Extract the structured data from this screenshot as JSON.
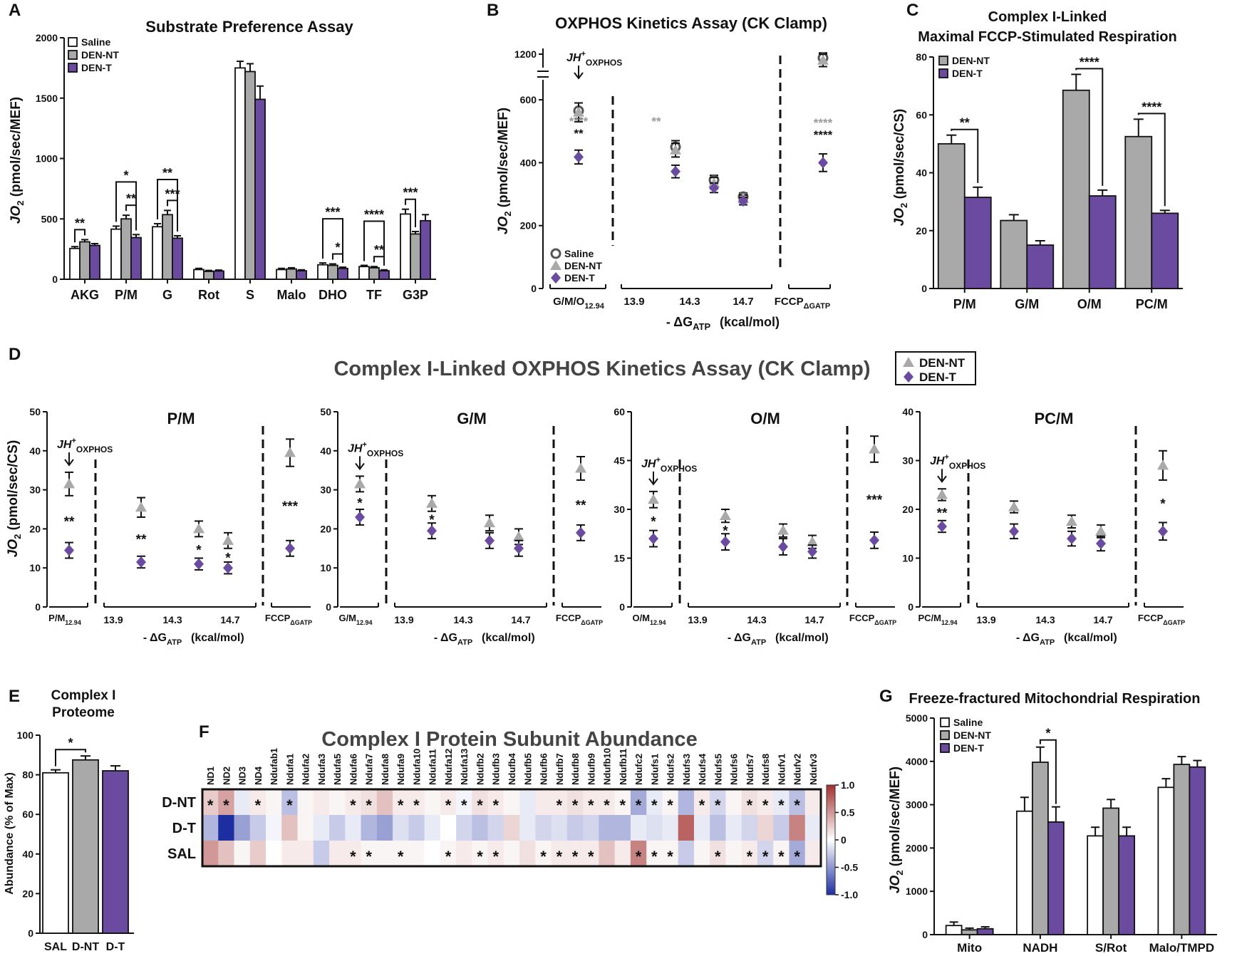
{
  "colors": {
    "saline": "#ffffff",
    "den_nt": "#a9a9a9",
    "den_t": "#6a4ba0",
    "marker_saline": "#555555",
    "stroke": "#111111",
    "sig_black": "#111111",
    "sig_grey": "#9a9a9a",
    "heat_pos": "#a2302f",
    "heat_neg": "#1d2ea0"
  },
  "chart_data": [
    {
      "panel": "A",
      "type": "bar",
      "title": "Substrate Preference Assay",
      "ylabel": "JO2 (pmol/sec/MEF)",
      "ylim": [
        0,
        2000
      ],
      "yticks": [
        0,
        500,
        1000,
        1500,
        2000
      ],
      "categories": [
        "AKG",
        "P/M",
        "G",
        "Rot",
        "S",
        "Malo",
        "DHO",
        "TF",
        "G3P"
      ],
      "series": [
        {
          "name": "Saline",
          "values": [
            255,
            415,
            435,
            80,
            1750,
            80,
            120,
            105,
            540
          ],
          "errors": [
            15,
            25,
            25,
            10,
            55,
            10,
            15,
            10,
            40
          ]
        },
        {
          "name": "DEN-NT",
          "values": [
            310,
            500,
            535,
            65,
            1720,
            85,
            115,
            95,
            375
          ],
          "errors": [
            18,
            30,
            35,
            8,
            65,
            10,
            12,
            10,
            20
          ]
        },
        {
          "name": "DEN-T",
          "values": [
            280,
            345,
            340,
            68,
            1490,
            70,
            90,
            70,
            485
          ],
          "errors": [
            15,
            25,
            20,
            8,
            110,
            8,
            10,
            8,
            50
          ]
        }
      ],
      "significance": [
        {
          "from": [
            0,
            0
          ],
          "to": [
            0,
            1
          ],
          "label": "**"
        },
        {
          "from": [
            1,
            0
          ],
          "to": [
            1,
            2
          ],
          "label": "*"
        },
        {
          "from": [
            1,
            1
          ],
          "to": [
            1,
            2
          ],
          "label": "**"
        },
        {
          "from": [
            2,
            0
          ],
          "to": [
            2,
            2
          ],
          "label": "**"
        },
        {
          "from": [
            2,
            1
          ],
          "to": [
            2,
            2
          ],
          "label": "***"
        },
        {
          "from": [
            6,
            0
          ],
          "to": [
            6,
            2
          ],
          "label": "***"
        },
        {
          "from": [
            6,
            1
          ],
          "to": [
            6,
            2
          ],
          "label": "*"
        },
        {
          "from": [
            7,
            0
          ],
          "to": [
            7,
            2
          ],
          "label": "****"
        },
        {
          "from": [
            7,
            1
          ],
          "to": [
            7,
            2
          ],
          "label": "**"
        },
        {
          "from": [
            8,
            0
          ],
          "to": [
            8,
            1
          ],
          "label": "***"
        }
      ]
    },
    {
      "panel": "B",
      "type": "scatter",
      "title": "OXPHOS Kinetics Assay (CK Clamp)",
      "ylabel": "JO2 (pmol/sec/MEF)",
      "xlabel": "- ΔGATP (kcal/mol)",
      "yticks": [
        0,
        200,
        400,
        600,
        1200
      ],
      "ylim": [
        0,
        650
      ],
      "y_break": "650-1150",
      "groups": [
        "G/M/O12.94",
        "13.9",
        "14.3",
        "14.7",
        "FCCPΔGATP"
      ],
      "xtick_labels": [
        "G/M/O",
        "13.9",
        "14.3",
        "14.7",
        "FCCP"
      ],
      "xtick_subs": [
        "12.94",
        "",
        "",
        "",
        "ΔGATP"
      ],
      "series": [
        {
          "name": "Saline",
          "marker": "circle",
          "points": [
            [
              0.0,
              565,
              25
            ],
            [
              1.45,
              450,
              20
            ],
            [
              2.55,
              345,
              15
            ],
            [
              3.3,
              292,
              12
            ],
            [
              4.6,
              1185,
              20
            ]
          ]
        },
        {
          "name": "DEN-NT",
          "marker": "triangle",
          "points": [
            [
              0.0,
              560,
              30
            ],
            [
              1.45,
              440,
              22
            ],
            [
              2.55,
              335,
              18
            ],
            [
              3.3,
              285,
              12
            ],
            [
              4.6,
              1175,
              25
            ]
          ]
        },
        {
          "name": "DEN-T",
          "marker": "diamond",
          "points": [
            [
              0.0,
              418,
              22
            ],
            [
              1.45,
              372,
              20
            ],
            [
              2.55,
              320,
              15
            ],
            [
              3.3,
              278,
              12
            ],
            [
              4.6,
              400,
              28
            ]
          ]
        }
      ],
      "annotation": {
        "text": "JH",
        "sup": "+",
        "sub": "OXPHOS"
      },
      "sig": [
        {
          "x": 0.0,
          "lines": [
            {
              "t": "****",
              "c": "grey"
            },
            {
              "t": "**",
              "c": "black"
            }
          ]
        },
        {
          "x": 1.45,
          "lines": [
            {
              "t": "**",
              "c": "grey"
            }
          ]
        },
        {
          "x": 4.6,
          "lines": [
            {
              "t": "****",
              "c": "grey"
            },
            {
              "t": "****",
              "c": "black"
            }
          ]
        }
      ],
      "legend": [
        "Saline",
        "DEN-NT",
        "DEN-T"
      ]
    },
    {
      "panel": "C",
      "type": "bar",
      "title": "Complex I-Linked",
      "title2": "Maximal FCCP-Stimulated Respiration",
      "ylabel": "JO2 (pmol/sec/CS)",
      "ylim": [
        0,
        80
      ],
      "yticks": [
        0,
        20,
        40,
        60,
        80
      ],
      "categories": [
        "P/M",
        "G/M",
        "O/M",
        "PC/M"
      ],
      "series": [
        {
          "name": "DEN-NT",
          "values": [
            50,
            23.5,
            68.5,
            52.5
          ],
          "errors": [
            3,
            2,
            5.5,
            6
          ]
        },
        {
          "name": "DEN-T",
          "values": [
            31.5,
            15,
            32,
            26
          ],
          "errors": [
            3.5,
            1.5,
            2,
            1
          ]
        }
      ],
      "significance": [
        {
          "cat": 0,
          "label": "**"
        },
        {
          "cat": 2,
          "label": "****"
        },
        {
          "cat": 3,
          "label": "****"
        }
      ]
    },
    {
      "panel": "D",
      "type": "scatter",
      "title": "Complex I-Linked OXPHOS Kinetics Assay (CK Clamp)",
      "ylabel": "JO2 (pmol/sec/CS)",
      "xlabel": "- ΔGATP (kcal/mol)",
      "legend": [
        "DEN-NT",
        "DEN-T"
      ],
      "xtick_labels": [
        "13.9",
        "14.3",
        "14.7"
      ],
      "subplots": [
        {
          "title": "P/M",
          "first_label": "P/M",
          "first_sub": "12.94",
          "ymax": 50,
          "yticks": [
            0,
            10,
            20,
            30,
            40,
            50
          ],
          "nt": [
            [
              31.5,
              3
            ],
            [
              25.5,
              2.5
            ],
            [
              20,
              2
            ],
            [
              17,
              2
            ],
            [
              39.5,
              3.5
            ]
          ],
          "t": [
            [
              14.5,
              2
            ],
            [
              11.5,
              1.5
            ],
            [
              11,
              1.5
            ],
            [
              10,
              1.5
            ],
            [
              15,
              2
            ]
          ],
          "sig": [
            "**",
            "**",
            "*",
            "*",
            "***"
          ]
        },
        {
          "title": "G/M",
          "first_label": "G/M",
          "first_sub": "12.94",
          "ymax": 50,
          "yticks": [
            0,
            10,
            20,
            30,
            40,
            50
          ],
          "nt": [
            [
              31.5,
              2
            ],
            [
              26.5,
              2
            ],
            [
              21.5,
              2
            ],
            [
              18,
              2
            ],
            [
              35.5,
              3
            ]
          ],
          "t": [
            [
              23,
              2
            ],
            [
              19.5,
              2
            ],
            [
              17,
              2
            ],
            [
              15,
              2
            ],
            [
              19,
              2
            ]
          ],
          "sig": [
            "*",
            "*",
            "",
            "",
            "**"
          ]
        },
        {
          "title": "O/M",
          "first_label": "O/M",
          "first_sub": "12.94",
          "ymax": 60,
          "yticks": [
            0,
            15,
            30,
            45,
            60
          ],
          "nt": [
            [
              33,
              2.5
            ],
            [
              28,
              2
            ],
            [
              23.5,
              2
            ],
            [
              20,
              2
            ],
            [
              48.5,
              4
            ]
          ],
          "t": [
            [
              21,
              2.5
            ],
            [
              20,
              2.5
            ],
            [
              18.5,
              2.5
            ],
            [
              17,
              2
            ],
            [
              20.5,
              2.5
            ]
          ],
          "sig": [
            "*",
            "*",
            "",
            "",
            "***"
          ]
        },
        {
          "title": "PC/M",
          "first_label": "PC/M",
          "first_sub": "12.94",
          "ymax": 40,
          "yticks": [
            0,
            10,
            20,
            30,
            40
          ],
          "nt": [
            [
              23,
              1.2
            ],
            [
              20.5,
              1.2
            ],
            [
              17.5,
              1.3
            ],
            [
              15.5,
              1.3
            ],
            [
              29,
              3
            ]
          ],
          "t": [
            [
              16.5,
              1.2
            ],
            [
              15.5,
              1.5
            ],
            [
              14,
              1.5
            ],
            [
              13,
              1.5
            ],
            [
              15.5,
              1.8
            ]
          ],
          "sig": [
            "**",
            "",
            "",
            "",
            "*"
          ]
        }
      ],
      "annotation": {
        "text": "JH",
        "sup": "+",
        "sub": "OXPHOS"
      }
    },
    {
      "panel": "E",
      "type": "bar",
      "title": "Complex I",
      "title2": "Proteome",
      "ylabel": "Abundance (% of Max)",
      "ylim": [
        0,
        100
      ],
      "yticks": [
        0,
        20,
        40,
        60,
        80,
        100
      ],
      "categories": [
        "SAL",
        "D-NT",
        "D-T"
      ],
      "values": [
        81,
        87.5,
        82
      ],
      "errors": [
        1.5,
        2,
        2.5
      ],
      "significance": [
        {
          "from": 0,
          "to": 1,
          "label": "*"
        }
      ]
    },
    {
      "panel": "F",
      "type": "heatmap",
      "title": "Complex I Protein Subunit Abundance",
      "columns": [
        "ND1",
        "ND2",
        "ND3",
        "ND4",
        "Ndufab1",
        "Ndufa1",
        "Ndufa2",
        "Ndufa3",
        "Ndufa5",
        "Ndufa6",
        "Ndufa7",
        "Ndufa8",
        "Ndufa9",
        "Ndufa10",
        "Ndufa11",
        "Ndufa12",
        "Ndufa13",
        "Ndufb2",
        "Ndufb3",
        "Ndufb4",
        "Ndufb5",
        "Ndufb6",
        "Ndufb7",
        "Ndufb8",
        "Ndufb9",
        "Ndufb10",
        "Ndufb11",
        "Ndufc2",
        "Ndufs1",
        "Ndufs2",
        "Ndufs3",
        "Ndufs4",
        "Ndufs5",
        "Ndufs6",
        "Ndufs7",
        "Ndufs8",
        "Ndufv1",
        "Ndufv2",
        "Ndufv3"
      ],
      "rows": [
        "D-NT",
        "D-T",
        "SAL"
      ],
      "values": [
        [
          0.25,
          0.45,
          -0.1,
          0.1,
          0.05,
          -0.3,
          0.05,
          0.1,
          0.05,
          0.1,
          0.15,
          0.3,
          0.1,
          0.1,
          0.05,
          0.1,
          -0.05,
          0.15,
          0.1,
          0.05,
          -0.1,
          0.1,
          0.1,
          0.15,
          0.1,
          0.1,
          0.05,
          -0.4,
          -0.1,
          0.05,
          -0.35,
          0.1,
          -0.2,
          0.05,
          0.15,
          0.1,
          -0.1,
          -0.3,
          0.1
        ],
        [
          -0.35,
          -1.0,
          -0.45,
          -0.25,
          -0.05,
          0.3,
          0.05,
          -0.1,
          -0.25,
          -0.1,
          -0.35,
          -0.45,
          -0.15,
          -0.25,
          -0.1,
          0.0,
          -0.2,
          -0.3,
          -0.2,
          0.2,
          -0.1,
          -0.2,
          -0.15,
          -0.25,
          -0.2,
          -0.35,
          -0.35,
          -0.1,
          -0.15,
          -0.1,
          0.75,
          -0.1,
          -0.3,
          -0.1,
          -0.2,
          0.2,
          -0.25,
          0.6,
          -0.1
        ],
        [
          0.5,
          0.3,
          0.05,
          0.25,
          0.0,
          0.1,
          0.1,
          -0.25,
          0.1,
          0.1,
          0.05,
          0.05,
          0.05,
          0.05,
          0.0,
          0.05,
          0.1,
          0.05,
          0.1,
          0.05,
          0.15,
          0.05,
          0.1,
          0.1,
          0.1,
          0.3,
          0.1,
          0.6,
          0.05,
          0.05,
          -0.25,
          0.05,
          0.15,
          0.05,
          0.1,
          -0.2,
          0.05,
          -0.4,
          0.1
        ]
      ],
      "stars": [
        [
          0,
          1,
          3,
          5,
          9,
          10,
          12,
          13,
          15,
          16,
          17,
          18,
          22,
          23,
          24,
          25,
          26,
          27,
          28,
          29,
          31,
          32,
          34,
          35,
          36,
          37
        ],
        [],
        [
          9,
          10,
          12,
          15,
          17,
          18,
          21,
          22,
          23,
          24,
          27,
          28,
          29,
          32,
          34,
          35,
          36,
          37
        ]
      ],
      "colorbar": {
        "ticks": [
          "1.0",
          "0.5",
          "0",
          "-0.5",
          "-1.0"
        ]
      }
    },
    {
      "panel": "G",
      "type": "bar",
      "title": "Freeze-fractured Mitochondrial Respiration",
      "ylabel": "JO2 (pmol/sec/MEF)",
      "ylim": [
        0,
        5000
      ],
      "yticks": [
        0,
        1000,
        2000,
        3000,
        4000,
        5000
      ],
      "categories": [
        "Mito",
        "NADH",
        "S/Rot",
        "Malo/TMPD"
      ],
      "series": [
        {
          "name": "Saline",
          "values": [
            210,
            2850,
            2280,
            3400
          ],
          "errors": [
            80,
            320,
            200,
            200
          ]
        },
        {
          "name": "DEN-NT",
          "values": [
            110,
            3980,
            2920,
            3930
          ],
          "errors": [
            40,
            350,
            200,
            180
          ]
        },
        {
          "name": "DEN-T",
          "values": [
            135,
            2600,
            2280,
            3870
          ],
          "errors": [
            45,
            350,
            200,
            150
          ]
        }
      ],
      "significance": [
        {
          "from": [
            1,
            1
          ],
          "to": [
            1,
            2
          ],
          "label": "*"
        }
      ]
    }
  ],
  "panel_letters": [
    "A",
    "B",
    "C",
    "D",
    "E",
    "F",
    "G"
  ]
}
